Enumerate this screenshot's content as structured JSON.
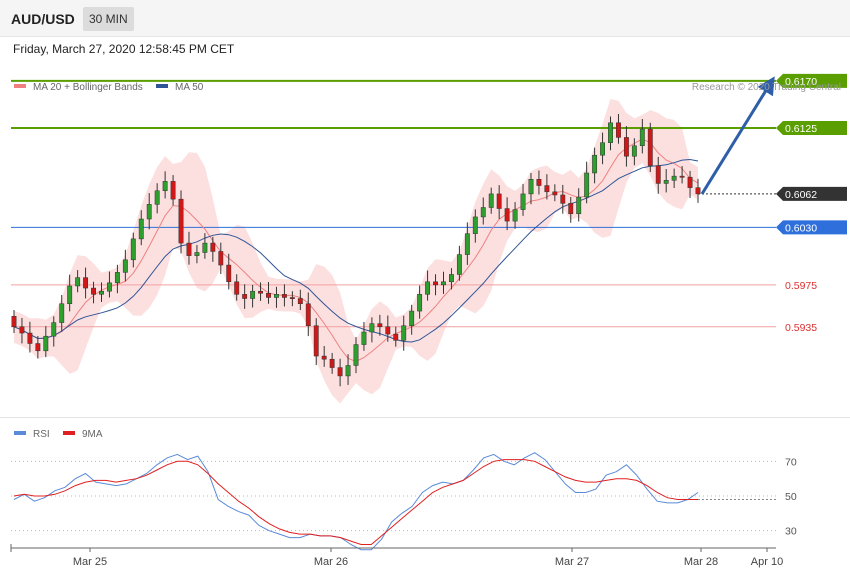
{
  "header": {
    "symbol": "AUD/USD",
    "timeframe": "30 MIN",
    "datetime": "Friday, March 27, 2020 12:58:45 PM CET"
  },
  "chart_data": [
    {
      "type": "candlestick",
      "legend": [
        {
          "name": "MA 20 + Bollinger Bands",
          "color": "#f08080"
        },
        {
          "name": "MA 50",
          "color": "#2f5597"
        }
      ],
      "legend_placement": "top-left",
      "credit": "Research © 2020 Trading Central",
      "y_range": [
        0.5865,
        0.619
      ],
      "x_ticks": [
        "Mar 25",
        "Mar 26",
        "Mar 27",
        "Mar 28",
        "Apr 10"
      ],
      "levels": [
        {
          "value": 0.617,
          "label": "0.6170",
          "kind": "resistance",
          "color": "#5a9e00"
        },
        {
          "value": 0.6125,
          "label": "0.6125",
          "kind": "resistance",
          "color": "#5a9e00"
        },
        {
          "value": 0.6062,
          "label": "0.6062",
          "kind": "last-price",
          "color": "#333333"
        },
        {
          "value": 0.603,
          "label": "0.6030",
          "kind": "pivot",
          "color": "#2f6fdb"
        },
        {
          "value": 0.5975,
          "label": "0.5975",
          "kind": "support",
          "color": "#e03030"
        },
        {
          "value": 0.5935,
          "label": "0.5935",
          "kind": "support",
          "color": "#e03030"
        }
      ],
      "projection": {
        "from": 0.6062,
        "to": 0.617
      },
      "close_path": [
        [
          0.5935,
          0.5929,
          0.5919,
          0.5912,
          0.5926,
          0.5939,
          0.5957,
          0.5974,
          0.5982,
          0.5972,
          0.5966,
          0.5969,
          0.5977,
          0.5987,
          0.5999,
          0.6019,
          0.6038,
          0.6052,
          0.6065,
          0.6074,
          0.6057,
          0.6015,
          0.6003,
          0.6006,
          0.6015,
          0.6007,
          0.5994,
          0.5978,
          0.5966,
          0.5962,
          0.5969,
          0.5967,
          0.5963,
          0.5966,
          0.5963,
          0.5962,
          0.5957,
          0.5936,
          0.5907,
          0.5904,
          0.5896,
          0.5888,
          0.5898,
          0.5918,
          0.593,
          0.5938,
          0.5935,
          0.5928,
          0.5922,
          0.5936,
          0.595,
          0.5966,
          0.5978,
          0.5975,
          0.5978,
          0.5985,
          0.6004,
          0.6024,
          0.604,
          0.6049,
          0.6062,
          0.6048,
          0.6036,
          0.6047,
          0.6062,
          0.6076,
          0.607,
          0.6064,
          0.6061,
          0.6053,
          0.6043,
          0.6059,
          0.6082,
          0.6099,
          0.6111,
          0.613,
          0.6116,
          0.6098,
          0.6108,
          0.6124,
          0.6089,
          0.6072,
          0.6075,
          0.6079,
          0.6078,
          0.6068,
          0.6062
        ]
      ]
    },
    {
      "type": "line",
      "legend": [
        {
          "name": "RSI",
          "color": "#5a8ad8"
        },
        {
          "name": "9MA",
          "color": "#e02020"
        }
      ],
      "y_range": [
        20,
        80
      ],
      "y_ticks": [
        70,
        50,
        30
      ],
      "series": [
        {
          "name": "RSI",
          "values": [
            48,
            51,
            47,
            49,
            53,
            55,
            60,
            63,
            58,
            57,
            56,
            57,
            60,
            63,
            68,
            72,
            74,
            71,
            73,
            64,
            48,
            44,
            41,
            39,
            33,
            30,
            28,
            26,
            26,
            28,
            27,
            27,
            26,
            22,
            19,
            19,
            25,
            35,
            40,
            44,
            52,
            56,
            58,
            57,
            59,
            65,
            72,
            74,
            70,
            68,
            72,
            75,
            71,
            64,
            57,
            52,
            52,
            54,
            62,
            64,
            68,
            62,
            54,
            47,
            46,
            46,
            48,
            52
          ]
        },
        {
          "name": "9MA",
          "values": [
            50,
            51,
            50,
            50,
            51,
            53,
            56,
            58,
            59,
            59,
            58,
            59,
            60,
            62,
            65,
            68,
            70,
            70,
            68,
            63,
            57,
            52,
            47,
            43,
            38,
            34,
            31,
            29,
            28,
            28,
            27,
            27,
            26,
            24,
            22,
            22,
            27,
            32,
            37,
            42,
            47,
            52,
            55,
            57,
            59,
            63,
            67,
            70,
            71,
            71,
            71,
            70,
            67,
            64,
            61,
            59,
            58,
            58,
            59,
            60,
            60,
            59,
            56,
            52,
            49,
            48,
            48,
            48
          ]
        }
      ]
    }
  ]
}
